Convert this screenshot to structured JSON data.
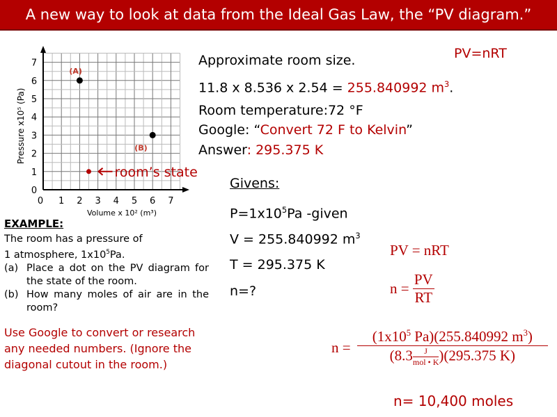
{
  "title": "A new way to look at data from the Ideal Gas Law, the “PV diagram.”",
  "formula_top": "PV=nRT",
  "room": {
    "size_label": "Approximate room size.",
    "dims": "11.8 x 8.536 x 2.54 = ",
    "volume": "255.840992 m",
    "temp": "Room temperature:72 °F",
    "google_prefix": "Google: “",
    "google_query": "Convert 72 F to Kelvin",
    "google_suffix": "”",
    "answer_label": "Answer",
    "answer_value": ": 295.375 K"
  },
  "givens": {
    "heading": "Givens:",
    "p": "P=1x10",
    "p_exp": "5",
    "p_rest": "Pa -given",
    "v": "V = 255.840992 m",
    "t": "T = 295.375 K",
    "n": "n=?"
  },
  "solution": {
    "eq1": "PV = nRT",
    "n_eq": "n =",
    "pv": "PV",
    "rt": "RT",
    "num": "(1x10",
    "num_exp": "5",
    "num_rest": " Pa)(255.840992 m",
    "den_a": "(8.3",
    "j": "J",
    "molk": "mol • K",
    "den_b": ")(295.375 K)",
    "result": "n= 10,400 moles"
  },
  "example": {
    "heading": "EXAMPLE:",
    "line1": "The room has a pressure of",
    "line2a": "1 atmosphere, 1x10",
    "line2exp": "5",
    "line2b": "Pa.",
    "a_label": "(a)",
    "a_text": "Place a dot on the PV diagram for the state of the room.",
    "b_label": "(b)",
    "b_text": "How many moles of air are in the room?",
    "note": "Use Google to convert or research any needed numbers. (Ignore the diagonal cutout in the room.)"
  },
  "chart_data": {
    "type": "scatter",
    "xlabel": "Volume x 10² (m³)",
    "ylabel": "Pressure x10⁵ (Pa)",
    "xlim": [
      0,
      7.5
    ],
    "ylim": [
      0,
      7.5
    ],
    "xticks": [
      "0",
      "1",
      "2",
      "3",
      "4",
      "5",
      "6",
      "7"
    ],
    "yticks": [
      "0",
      "1",
      "2",
      "3",
      "4",
      "5",
      "6",
      "7"
    ],
    "grid": true,
    "points": [
      {
        "label": "(A)",
        "x": 2,
        "y": 6,
        "color": "#000000"
      },
      {
        "label": "(B)",
        "x": 6,
        "y": 3,
        "color": "#000000"
      },
      {
        "label": "room’s state",
        "x": 2.5,
        "y": 1,
        "color": "#b30000"
      }
    ]
  },
  "colors": {
    "accent": "#b30000"
  }
}
